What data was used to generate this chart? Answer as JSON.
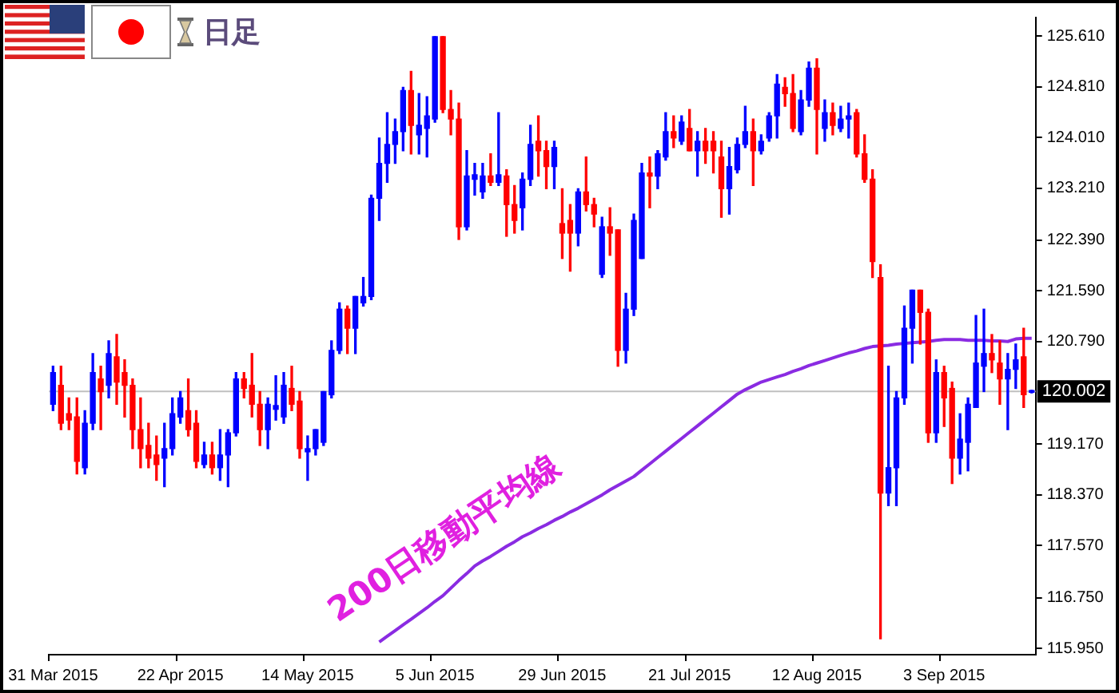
{
  "chart_data": {
    "type": "candlestick",
    "title": "日足",
    "categories": [
      "31 Mar 2015",
      null,
      null,
      null,
      null,
      null,
      null,
      null,
      null,
      null,
      null,
      null,
      null,
      null,
      null,
      null,
      "22 Apr 2015",
      null,
      null,
      null,
      null,
      null,
      null,
      null,
      null,
      null,
      null,
      null,
      null,
      null,
      null,
      null,
      "14 May 2015",
      null,
      null,
      null,
      null,
      null,
      null,
      null,
      null,
      null,
      null,
      null,
      null,
      null,
      null,
      null,
      "5 Jun 2015",
      null,
      null,
      null,
      null,
      null,
      null,
      null,
      null,
      null,
      null,
      null,
      null,
      null,
      null,
      null,
      "29 Jun 2015",
      null,
      null,
      null,
      null,
      null,
      null,
      null,
      null,
      null,
      null,
      null,
      null,
      null,
      null,
      null,
      "21 Jul 2015",
      null,
      null,
      null,
      null,
      null,
      null,
      null,
      null,
      null,
      null,
      null,
      null,
      null,
      null,
      null,
      "12 Aug 2015",
      null,
      null,
      null,
      null,
      null,
      null,
      null,
      null,
      null,
      null,
      null,
      null,
      null,
      null,
      null,
      "3 Sep 2015",
      null,
      null,
      null,
      null,
      null,
      null,
      null,
      null,
      null,
      null,
      null
    ],
    "series": [
      {
        "type": "candlestick",
        "ohlc": [
          [
            119.8,
            120.4,
            119.7,
            120.3
          ],
          [
            120.1,
            120.4,
            119.4,
            119.5
          ],
          [
            119.65,
            119.9,
            119.4,
            119.55
          ],
          [
            119.6,
            119.9,
            118.7,
            118.9
          ],
          [
            118.8,
            119.7,
            118.7,
            119.5
          ],
          [
            119.5,
            120.6,
            119.4,
            120.3
          ],
          [
            120.2,
            120.4,
            119.4,
            120.0
          ],
          [
            120.1,
            120.8,
            119.9,
            120.6
          ],
          [
            120.55,
            120.9,
            119.8,
            120.15
          ],
          [
            120.3,
            120.5,
            119.6,
            120.1
          ],
          [
            120.1,
            120.2,
            119.1,
            119.4
          ],
          [
            119.4,
            119.9,
            118.8,
            119.1
          ],
          [
            119.15,
            119.5,
            118.8,
            118.95
          ],
          [
            119.0,
            119.3,
            118.6,
            118.85
          ],
          [
            118.95,
            119.5,
            118.5,
            119.1
          ],
          [
            119.1,
            119.9,
            119.0,
            119.65
          ],
          [
            119.6,
            120.0,
            119.5,
            119.9
          ],
          [
            119.7,
            120.2,
            119.3,
            119.4
          ],
          [
            119.5,
            119.7,
            118.8,
            118.9
          ],
          [
            118.85,
            119.2,
            118.8,
            119.0
          ],
          [
            119.0,
            119.2,
            118.7,
            118.8
          ],
          [
            118.8,
            119.4,
            118.6,
            119.0
          ],
          [
            119.0,
            119.4,
            118.5,
            119.35
          ],
          [
            119.35,
            120.3,
            119.3,
            120.2
          ],
          [
            120.2,
            120.3,
            119.9,
            120.05
          ],
          [
            120.1,
            120.6,
            119.6,
            119.8
          ],
          [
            119.8,
            120.0,
            119.15,
            119.4
          ],
          [
            119.4,
            119.9,
            119.1,
            119.8
          ],
          [
            119.72,
            120.25,
            119.55,
            119.78
          ],
          [
            119.6,
            120.3,
            119.5,
            120.1
          ],
          [
            120.05,
            120.4,
            119.7,
            119.8
          ],
          [
            119.85,
            120.0,
            118.95,
            119.1
          ],
          [
            119.05,
            119.3,
            118.6,
            119.1
          ],
          [
            119.1,
            119.4,
            119.0,
            119.4
          ],
          [
            119.2,
            120.0,
            119.15,
            120.0
          ],
          [
            119.95,
            120.8,
            119.9,
            120.65
          ],
          [
            120.65,
            121.4,
            120.6,
            121.3
          ],
          [
            121.3,
            121.35,
            120.6,
            121.0
          ],
          [
            121.0,
            121.5,
            120.6,
            121.5
          ],
          [
            121.4,
            121.8,
            121.35,
            121.5
          ],
          [
            121.5,
            123.1,
            121.45,
            123.05
          ],
          [
            123.05,
            124.0,
            122.7,
            123.6
          ],
          [
            123.6,
            124.4,
            123.3,
            123.9
          ],
          [
            123.9,
            124.3,
            123.6,
            124.1
          ],
          [
            124.1,
            124.8,
            123.8,
            124.75
          ],
          [
            124.75,
            125.05,
            123.75,
            124.2
          ],
          [
            124.05,
            124.7,
            123.75,
            124.2
          ],
          [
            124.15,
            124.65,
            123.7,
            124.35
          ],
          [
            124.3,
            125.6,
            124.25,
            125.6
          ],
          [
            125.6,
            125.6,
            124.4,
            124.45
          ],
          [
            124.45,
            124.75,
            124.05,
            124.3
          ],
          [
            124.3,
            124.55,
            122.4,
            122.6
          ],
          [
            122.6,
            123.8,
            122.55,
            123.4
          ],
          [
            123.35,
            123.6,
            123.1,
            123.42
          ],
          [
            123.15,
            123.6,
            123.05,
            123.4
          ],
          [
            123.4,
            123.75,
            123.25,
            123.3
          ],
          [
            123.3,
            124.4,
            123.25,
            123.42
          ],
          [
            123.4,
            123.5,
            122.45,
            122.95
          ],
          [
            122.95,
            123.25,
            122.5,
            122.7
          ],
          [
            122.9,
            123.45,
            122.55,
            123.35
          ],
          [
            123.35,
            124.2,
            123.25,
            123.9
          ],
          [
            123.95,
            124.35,
            123.4,
            123.8
          ],
          [
            123.8,
            123.95,
            123.2,
            123.55
          ],
          [
            123.55,
            123.95,
            123.2,
            123.85
          ],
          [
            122.65,
            123.2,
            122.1,
            122.5
          ],
          [
            122.7,
            122.95,
            121.9,
            122.5
          ],
          [
            122.5,
            123.2,
            122.3,
            123.15
          ],
          [
            123.15,
            123.7,
            122.85,
            122.95
          ],
          [
            122.95,
            123.05,
            122.6,
            122.8
          ],
          [
            121.85,
            122.75,
            121.8,
            122.6
          ],
          [
            122.6,
            122.9,
            122.15,
            122.5
          ],
          [
            122.55,
            122.55,
            120.4,
            120.65
          ],
          [
            120.65,
            121.55,
            120.45,
            121.3
          ],
          [
            121.3,
            122.8,
            121.2,
            122.7
          ],
          [
            122.1,
            123.6,
            122.1,
            123.45
          ],
          [
            123.45,
            123.7,
            122.9,
            123.4
          ],
          [
            123.4,
            123.8,
            123.2,
            123.75
          ],
          [
            123.7,
            124.4,
            123.65,
            124.1
          ],
          [
            124.1,
            124.35,
            123.85,
            124.0
          ],
          [
            123.95,
            124.35,
            123.9,
            124.25
          ],
          [
            124.15,
            124.45,
            123.8,
            123.8
          ],
          [
            123.8,
            124.1,
            123.4,
            123.95
          ],
          [
            123.95,
            124.15,
            123.6,
            123.8
          ],
          [
            123.95,
            124.1,
            123.45,
            123.8
          ],
          [
            123.7,
            123.95,
            122.75,
            123.2
          ],
          [
            123.2,
            123.85,
            122.8,
            123.55
          ],
          [
            123.5,
            124.0,
            123.45,
            123.9
          ],
          [
            123.9,
            124.5,
            123.85,
            124.1
          ],
          [
            124.1,
            124.3,
            123.25,
            123.8
          ],
          [
            123.8,
            124.05,
            123.75,
            123.95
          ],
          [
            124.0,
            124.4,
            123.95,
            124.35
          ],
          [
            124.35,
            125.0,
            124.0,
            124.85
          ],
          [
            124.8,
            124.95,
            124.5,
            124.7
          ],
          [
            124.7,
            125.0,
            124.1,
            124.15
          ],
          [
            124.1,
            124.75,
            124.05,
            124.6
          ],
          [
            124.6,
            125.2,
            124.5,
            125.1
          ],
          [
            125.1,
            125.25,
            123.75,
            124.45
          ],
          [
            124.15,
            124.6,
            123.95,
            124.4
          ],
          [
            124.4,
            124.55,
            124.05,
            124.2
          ],
          [
            124.15,
            124.5,
            124.1,
            124.3
          ],
          [
            124.3,
            124.55,
            124.0,
            124.35
          ],
          [
            124.4,
            124.45,
            123.7,
            123.75
          ],
          [
            123.75,
            124.05,
            123.3,
            123.35
          ],
          [
            123.35,
            123.5,
            121.8,
            122.05
          ],
          [
            121.8,
            122.0,
            116.1,
            118.4
          ],
          [
            118.4,
            120.4,
            118.2,
            118.8
          ],
          [
            118.8,
            120.0,
            118.2,
            119.9
          ],
          [
            119.9,
            121.35,
            119.8,
            121.0
          ],
          [
            121.0,
            121.6,
            120.45,
            121.6
          ],
          [
            121.6,
            121.6,
            120.75,
            121.25
          ],
          [
            121.25,
            121.3,
            119.2,
            119.35
          ],
          [
            119.35,
            120.5,
            119.2,
            120.3
          ],
          [
            120.3,
            120.4,
            119.45,
            119.9
          ],
          [
            120.05,
            120.15,
            118.55,
            118.95
          ],
          [
            118.95,
            119.65,
            118.7,
            119.25
          ],
          [
            119.2,
            119.9,
            118.75,
            119.8
          ],
          [
            119.75,
            121.2,
            119.75,
            120.45
          ],
          [
            120.4,
            121.3,
            120.0,
            120.6
          ],
          [
            120.6,
            120.9,
            120.3,
            120.5
          ],
          [
            120.45,
            120.8,
            119.8,
            120.2
          ],
          [
            120.2,
            120.6,
            119.4,
            120.35
          ],
          [
            120.35,
            120.75,
            120.05,
            120.5
          ],
          [
            120.55,
            121.0,
            119.75,
            119.95
          ],
          [
            119.99,
            120.02,
            119.98,
            120.002
          ]
        ],
        "colors": [
          "#0000ff",
          "#ff0000",
          "#ff0000",
          "#ff0000",
          "#0000ff",
          "#0000ff",
          "#ff0000",
          "#0000ff",
          "#ff0000",
          "#ff0000",
          "#ff0000",
          "#ff0000",
          "#ff0000",
          "#ff0000",
          "#0000ff",
          "#0000ff",
          "#0000ff",
          "#ff0000",
          "#ff0000",
          "#0000ff",
          "#ff0000",
          "#0000ff",
          "#0000ff",
          "#0000ff",
          "#ff0000",
          "#ff0000",
          "#ff0000",
          "#0000ff",
          "#0000ff",
          "#0000ff",
          "#ff0000",
          "#ff0000",
          "#0000ff",
          "#0000ff",
          "#0000ff",
          "#0000ff",
          "#0000ff",
          "#ff0000",
          "#0000ff",
          "#0000ff",
          "#0000ff",
          "#0000ff",
          "#0000ff",
          "#0000ff",
          "#0000ff",
          "#ff0000",
          "#0000ff",
          "#0000ff",
          "#0000ff",
          "#ff0000",
          "#ff0000",
          "#ff0000",
          "#0000ff",
          "#0000ff",
          "#0000ff",
          "#ff0000",
          "#0000ff",
          "#ff0000",
          "#ff0000",
          "#0000ff",
          "#0000ff",
          "#ff0000",
          "#ff0000",
          "#0000ff",
          "#ff0000",
          "#ff0000",
          "#0000ff",
          "#ff0000",
          "#ff0000",
          "#0000ff",
          "#ff0000",
          "#ff0000",
          "#0000ff",
          "#0000ff",
          "#0000ff",
          "#ff0000",
          "#0000ff",
          "#0000ff",
          "#ff0000",
          "#0000ff",
          "#ff0000",
          "#0000ff",
          "#ff0000",
          "#ff0000",
          "#ff0000",
          "#0000ff",
          "#0000ff",
          "#0000ff",
          "#ff0000",
          "#0000ff",
          "#0000ff",
          "#0000ff",
          "#ff0000",
          "#ff0000",
          "#0000ff",
          "#0000ff",
          "#ff0000",
          "#0000ff",
          "#ff0000",
          "#0000ff",
          "#0000ff",
          "#ff0000",
          "#ff0000",
          "#ff0000",
          "#ff0000",
          "#0000ff",
          "#0000ff",
          "#0000ff",
          "#0000ff",
          "#ff0000",
          "#ff0000",
          "#0000ff",
          "#ff0000",
          "#ff0000",
          "#0000ff",
          "#0000ff",
          "#0000ff",
          "#0000ff",
          "#ff0000",
          "#ff0000",
          "#0000ff",
          "#0000ff",
          "#ff0000",
          "#0000ff"
        ]
      },
      {
        "type": "line",
        "name": "200日移動平均線",
        "color": "#8a2be2",
        "values": [
          null,
          null,
          null,
          null,
          null,
          null,
          null,
          null,
          null,
          null,
          null,
          null,
          null,
          null,
          null,
          null,
          null,
          null,
          null,
          null,
          null,
          null,
          null,
          null,
          null,
          null,
          null,
          null,
          null,
          null,
          null,
          null,
          null,
          null,
          null,
          null,
          null,
          null,
          null,
          null,
          null,
          116.05,
          116.14,
          116.23,
          116.32,
          116.41,
          116.5,
          116.59,
          116.69,
          116.78,
          116.9,
          117.02,
          117.13,
          117.25,
          117.33,
          117.4,
          117.48,
          117.56,
          117.63,
          117.71,
          117.77,
          117.84,
          117.9,
          117.97,
          118.03,
          118.1,
          118.16,
          118.23,
          118.3,
          118.37,
          118.45,
          118.52,
          118.59,
          118.66,
          118.76,
          118.86,
          118.96,
          119.06,
          119.16,
          119.26,
          119.36,
          119.46,
          119.56,
          119.66,
          119.76,
          119.86,
          119.96,
          120.03,
          120.09,
          120.15,
          120.19,
          120.23,
          120.27,
          120.32,
          120.36,
          120.41,
          120.45,
          120.49,
          120.53,
          120.57,
          120.61,
          120.64,
          120.68,
          120.71,
          120.72,
          120.73,
          120.75,
          120.76,
          120.77,
          120.78,
          120.79,
          120.81,
          120.82,
          120.82,
          120.82,
          120.81,
          120.81,
          120.81,
          120.8,
          120.8,
          120.79,
          120.83,
          120.84,
          120.84
        ]
      }
    ],
    "ylim": [
      115.85,
      125.9
    ],
    "yticks": [
      {
        "value": 125.61,
        "label": "125.610"
      },
      {
        "value": 124.81,
        "label": "124.810"
      },
      {
        "value": 124.01,
        "label": "124.010"
      },
      {
        "value": 123.21,
        "label": "123.210"
      },
      {
        "value": 122.39,
        "label": "122.390"
      },
      {
        "value": 121.59,
        "label": "121.590"
      },
      {
        "value": 120.79,
        "label": "120.790"
      },
      {
        "value": 119.17,
        "label": "119.170"
      },
      {
        "value": 118.37,
        "label": "118.370"
      },
      {
        "value": 117.57,
        "label": "117.570"
      },
      {
        "value": 116.75,
        "label": "116.750"
      },
      {
        "value": 115.95,
        "label": "115.950"
      }
    ],
    "ref_lines": [
      {
        "axis": "y",
        "value": 120.002,
        "label": "120.002",
        "color": "#c0c0c0"
      }
    ],
    "grid": false,
    "legend": false
  }
}
